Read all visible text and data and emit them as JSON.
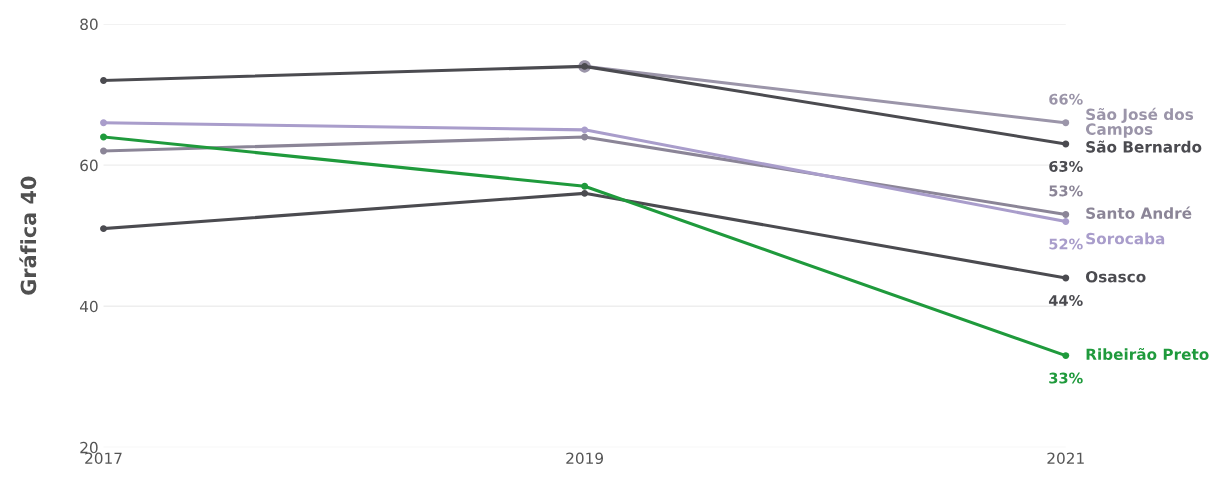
{
  "chart_data": {
    "type": "line",
    "ylabel": "Gráfica 40",
    "x": [
      2017,
      2019,
      2021
    ],
    "xlim": [
      2017,
      2021
    ],
    "xticks": [
      2017,
      2019,
      2021
    ],
    "ylim": [
      20,
      80
    ],
    "yticks": [
      20,
      40,
      60,
      80
    ],
    "grid": "y",
    "marker": "circle",
    "line_style": "solid",
    "legend": false,
    "series": [
      {
        "name": "São José dos Campos",
        "color": "#9b95a9",
        "values": [
          null,
          74,
          66
        ],
        "value_labels": [
          null,
          null,
          "66%"
        ]
      },
      {
        "name": "São Bernardo",
        "color": "#4b4b50",
        "values": [
          72,
          74,
          63
        ],
        "value_labels": [
          null,
          null,
          "63%"
        ]
      },
      {
        "name": "Santo André",
        "color": "#8b8597",
        "values": [
          62,
          64,
          53
        ],
        "value_labels": [
          null,
          null,
          "53%"
        ]
      },
      {
        "name": "Sorocaba",
        "color": "#a99dcb",
        "values": [
          66,
          65,
          52
        ],
        "value_labels": [
          null,
          null,
          "52%"
        ]
      },
      {
        "name": "Osasco",
        "color": "#4b4b50",
        "values": [
          51,
          56,
          44
        ],
        "value_labels": [
          null,
          null,
          "44%"
        ]
      },
      {
        "name": "Ribeirão Preto",
        "color": "#1f9a3c",
        "values": [
          64,
          57,
          33
        ],
        "value_labels": [
          null,
          null,
          "33%"
        ]
      }
    ]
  }
}
